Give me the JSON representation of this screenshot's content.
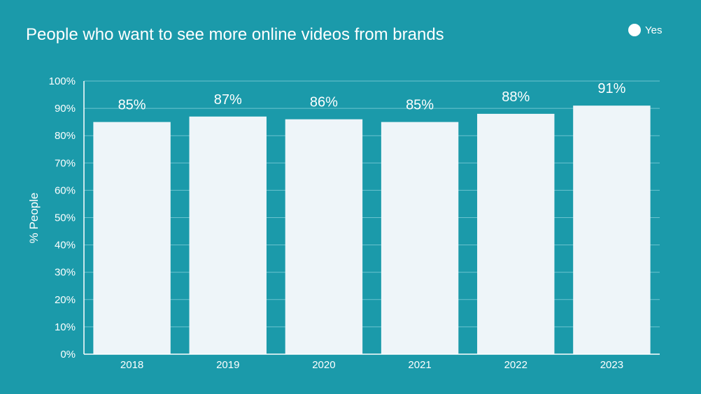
{
  "chart_data": {
    "type": "bar",
    "title": "People who want to see more online videos from brands",
    "ylabel": "% People",
    "xlabel": "",
    "categories": [
      "2018",
      "2019",
      "2020",
      "2021",
      "2022",
      "2023"
    ],
    "series": [
      {
        "name": "Yes",
        "values": [
          85,
          87,
          86,
          85,
          88,
          91
        ]
      }
    ],
    "data_labels": [
      "85%",
      "87%",
      "86%",
      "85%",
      "88%",
      "91%"
    ],
    "ylim": [
      0,
      100
    ],
    "yticks": [
      0,
      10,
      20,
      30,
      40,
      50,
      60,
      70,
      80,
      90,
      100
    ],
    "ytick_labels": [
      "0%",
      "10%",
      "20%",
      "30%",
      "40%",
      "50%",
      "60%",
      "70%",
      "80%",
      "90%",
      "100%"
    ],
    "grid": true,
    "legend_position": "top-right",
    "colors": {
      "background": "#1b9aaa",
      "bar": "#eef5f9",
      "grid": "#6cc3cf",
      "text": "#ffffff"
    }
  }
}
